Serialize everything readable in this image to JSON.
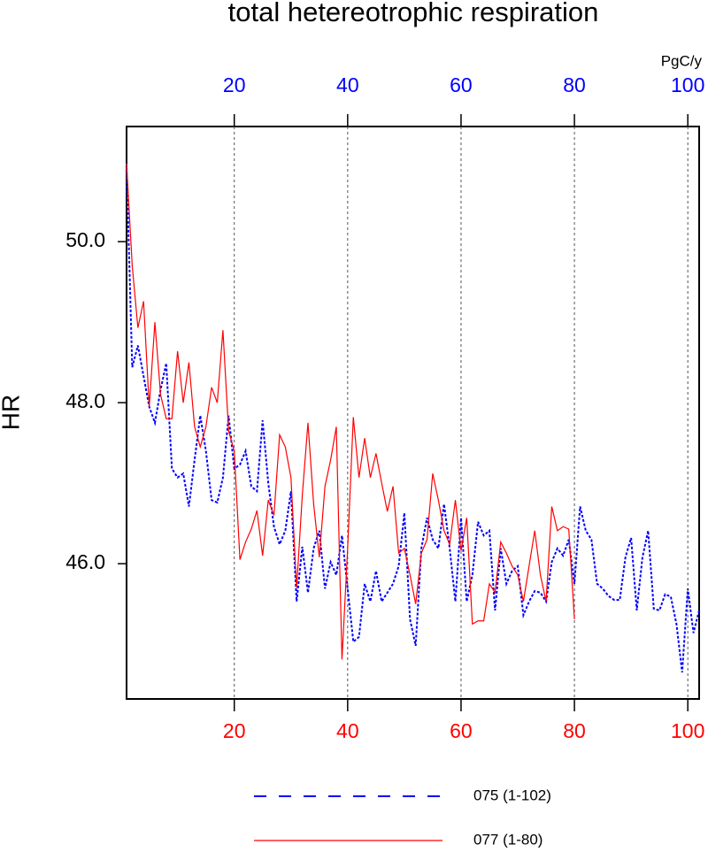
{
  "chart_data": {
    "type": "line",
    "title": "total hetereotrophic respiration",
    "units": "PgC/y",
    "y_label": "HR",
    "x": [
      1,
      2,
      3,
      4,
      5,
      6,
      7,
      8,
      9,
      10,
      11,
      12,
      13,
      14,
      15,
      16,
      17,
      18,
      19,
      20,
      21,
      22,
      23,
      24,
      25,
      26,
      27,
      28,
      29,
      30,
      31,
      32,
      33,
      34,
      35,
      36,
      37,
      38,
      39,
      40,
      41,
      42,
      43,
      44,
      45,
      46,
      47,
      48,
      49,
      50,
      51,
      52,
      53,
      54,
      55,
      56,
      57,
      58,
      59,
      60,
      61,
      62,
      63,
      64,
      65,
      66,
      67,
      68,
      69,
      70,
      71,
      72,
      73,
      74,
      75,
      76,
      77,
      78,
      79,
      80,
      81,
      82,
      83,
      84,
      85,
      86,
      87,
      88,
      89,
      90,
      91,
      92,
      93,
      94,
      95,
      96,
      97,
      98,
      99,
      100,
      101,
      102
    ],
    "series": [
      {
        "name": "075 (1-102)",
        "color": "#0000ff",
        "dash": true,
        "values": [
          50.97,
          48.44,
          48.71,
          48.33,
          47.95,
          47.75,
          48.16,
          48.49,
          47.18,
          47.07,
          47.12,
          46.71,
          47.29,
          47.84,
          47.4,
          46.79,
          46.76,
          47.07,
          47.84,
          47.18,
          47.23,
          47.4,
          46.96,
          46.9,
          47.78,
          47.0,
          46.46,
          46.24,
          46.41,
          46.9,
          45.53,
          46.21,
          45.64,
          46.19,
          46.41,
          45.69,
          46.02,
          45.86,
          46.35,
          45.69,
          45.03,
          45.09,
          45.75,
          45.53,
          45.91,
          45.53,
          45.64,
          45.75,
          45.97,
          46.63,
          45.31,
          44.98,
          46.19,
          46.57,
          46.3,
          46.19,
          46.74,
          46.19,
          45.53,
          46.57,
          45.53,
          45.86,
          46.52,
          46.35,
          46.41,
          45.42,
          46.19,
          45.75,
          45.91,
          45.97,
          45.36,
          45.53,
          45.66,
          45.64,
          45.53,
          46.02,
          46.19,
          46.1,
          46.3,
          45.75,
          46.71,
          46.41,
          46.3,
          45.75,
          45.69,
          45.6,
          45.55,
          45.55,
          46.08,
          46.32,
          45.42,
          46.08,
          46.41,
          45.44,
          45.42,
          45.62,
          45.59,
          45.25,
          44.65,
          45.69,
          45.14,
          45.42
        ]
      },
      {
        "name": "077 (1-80)",
        "color": "#ff0000",
        "dash": false,
        "values": [
          50.97,
          49.7,
          48.93,
          49.26,
          47.95,
          49.0,
          48.1,
          47.8,
          47.8,
          48.64,
          48.0,
          48.5,
          47.7,
          47.45,
          47.7,
          48.19,
          48.0,
          48.9,
          47.65,
          47.4,
          46.05,
          46.27,
          46.43,
          46.66,
          46.1,
          46.79,
          46.6,
          47.6,
          47.45,
          47.07,
          45.7,
          46.85,
          47.75,
          46.74,
          46.08,
          46.96,
          47.29,
          47.7,
          44.81,
          46.19,
          47.82,
          47.07,
          47.56,
          47.07,
          47.37,
          47.0,
          46.65,
          46.96,
          46.13,
          46.19,
          45.86,
          45.5,
          46.13,
          46.3,
          47.12,
          46.79,
          46.41,
          46.24,
          46.79,
          46.16,
          46.57,
          45.25,
          45.29,
          45.29,
          45.75,
          45.64,
          46.27,
          46.13,
          45.97,
          45.86,
          45.53,
          45.97,
          46.41,
          45.86,
          45.53,
          46.71,
          46.41,
          46.46,
          46.43,
          45.31,
          null,
          null,
          null,
          null,
          null,
          null,
          null,
          null,
          null,
          null,
          null,
          null,
          null,
          null,
          null,
          null,
          null,
          null,
          null,
          null,
          null,
          null
        ]
      }
    ],
    "xlim": [
      1,
      102
    ],
    "ylim": [
      44.32,
      51.43
    ],
    "xticks": [
      20,
      40,
      60,
      80,
      100
    ],
    "x2ticks": [
      20,
      40,
      60,
      80,
      100
    ],
    "yticks": [
      {
        "value": 46,
        "label": "46.0"
      },
      {
        "value": 48,
        "label": "48.0"
      },
      {
        "value": 50,
        "label": "50.0"
      }
    ],
    "grid": "x"
  }
}
